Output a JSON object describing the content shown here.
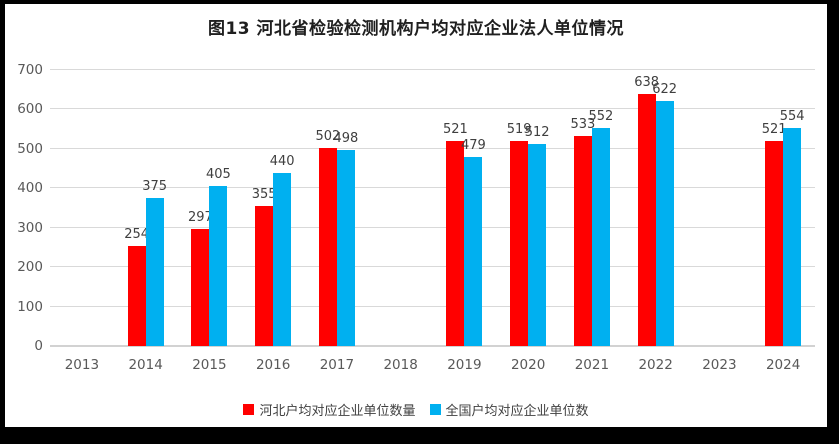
{
  "chart_data": {
    "type": "bar",
    "title": "图13 河北省检验检测机构户均对应企业法人单位情况",
    "categories": [
      "2013",
      "2014",
      "2015",
      "2016",
      "2017",
      "2018",
      "2019",
      "2020",
      "2021",
      "2022",
      "2023",
      "2024"
    ],
    "series": [
      {
        "name": "河北户均对应企业单位数量",
        "color": "#FF0000",
        "values": [
          null,
          254,
          297,
          355,
          502,
          null,
          521,
          519,
          533,
          638,
          null,
          521
        ]
      },
      {
        "name": "全国户均对应企业单位数",
        "color": "#00B0F0",
        "values": [
          null,
          375,
          405,
          440,
          498,
          null,
          479,
          512,
          552,
          622,
          null,
          554
        ]
      }
    ],
    "xlabel": "",
    "ylabel": "",
    "ylim": [
      0,
      700
    ],
    "ytick_step": 100,
    "grid": true,
    "legend_position": "bottom"
  },
  "colors": {
    "frame": "#000000",
    "chart_background": "#FFFFFF",
    "gridline": "#D9D9D9",
    "axis_text": "#595959",
    "value_label": "#3F3F3F",
    "title_text": "#1F1F1F"
  }
}
